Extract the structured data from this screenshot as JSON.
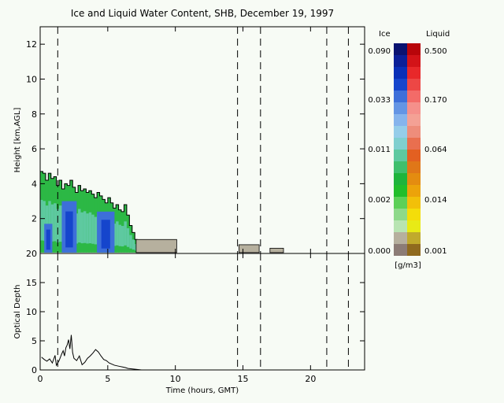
{
  "chart_data": [
    {
      "type": "heatmap",
      "title": "Ice and Liquid Water Content, SHB, December 19, 1997",
      "ylabel": "Height [km,AGL]",
      "xlim": [
        0,
        24
      ],
      "ylim": [
        0,
        13
      ],
      "yticks": [
        2,
        4,
        6,
        8,
        10,
        12
      ],
      "xticks": [
        0,
        5,
        10,
        15,
        20
      ],
      "dashed_lines_x": [
        1.3,
        14.6,
        16.3,
        21.2,
        22.8
      ],
      "cloud_top": {
        "x": [
          0.1,
          0.3,
          0.5,
          0.7,
          0.9,
          1.1,
          1.3,
          1.5,
          1.7,
          1.9,
          2.1,
          2.3,
          2.5,
          2.7,
          2.9,
          3.1,
          3.3,
          3.5,
          3.7,
          3.9,
          4.1,
          4.3,
          4.5,
          4.7,
          4.9,
          5.1,
          5.3,
          5.5,
          5.7,
          5.9,
          6.1,
          6.3,
          6.5,
          6.7,
          6.9,
          7.1
        ],
        "top_km": [
          4.7,
          4.6,
          4.2,
          4.6,
          4.3,
          4.4,
          3.9,
          4.2,
          3.7,
          4.0,
          3.9,
          4.2,
          3.8,
          3.5,
          3.9,
          3.6,
          3.7,
          3.5,
          3.6,
          3.4,
          3.2,
          3.5,
          3.3,
          3.1,
          2.9,
          3.2,
          2.9,
          2.6,
          2.8,
          2.5,
          2.4,
          2.8,
          2.2,
          1.6,
          1.2,
          0.8
        ]
      },
      "ice_cores": [
        {
          "x": [
            1.6,
            2.7
          ],
          "top_km": 3.0
        },
        {
          "x": [
            4.2,
            5.5
          ],
          "top_km": 2.4
        },
        {
          "x": [
            0.3,
            0.9
          ],
          "top_km": 1.7
        }
      ],
      "drizzle_blocks": [
        {
          "x": [
            7.1,
            10.1
          ],
          "top_km": 0.8
        },
        {
          "x": [
            14.7,
            16.2
          ],
          "top_km": 0.5
        },
        {
          "x": [
            17.0,
            18.0
          ],
          "top_km": 0.3
        }
      ],
      "colorbar": {
        "ice_label": "Ice",
        "liquid_label": "Liquid",
        "units": "[g/m3]",
        "ice_ticks": [
          "0.090",
          "0.033",
          "0.011",
          "0.002",
          "0.000"
        ],
        "liquid_ticks": [
          "0.500",
          "0.170",
          "0.064",
          "0.014",
          "0.001"
        ],
        "ice_colors": [
          "#0a1270",
          "#0b1f98",
          "#0a2fb7",
          "#1545cc",
          "#3d6fd9",
          "#6495e4",
          "#86b4ec",
          "#95cde9",
          "#7fcfcf",
          "#5ec9a0",
          "#3fbf6d",
          "#1fb43c",
          "#22be2b",
          "#5dd058",
          "#8ed98a",
          "#b8e4b2",
          "#b6b09e",
          "#8c7c76"
        ],
        "liquid_colors": [
          "#b8050a",
          "#d31318",
          "#e8282a",
          "#ed4745",
          "#f36b68",
          "#f5908b",
          "#f4a195",
          "#ee8d7b",
          "#e96f4f",
          "#e36021",
          "#e07718",
          "#e48c10",
          "#eca30a",
          "#f2c009",
          "#f4dd0a",
          "#e8ea16",
          "#c0aa2c",
          "#8f6a1e"
        ]
      }
    },
    {
      "type": "line",
      "xlabel": "Time (hours, GMT)",
      "ylabel": "Optical Depth",
      "xlim": [
        0,
        24
      ],
      "ylim": [
        0,
        20
      ],
      "yticks": [
        0,
        5,
        10,
        15,
        20
      ],
      "xticks": [
        0,
        5,
        10,
        15,
        20
      ],
      "dashed_lines_x": [
        1.3,
        14.6,
        16.3,
        21.2,
        22.8
      ],
      "series": [
        {
          "x": [
            0.1,
            0.3,
            0.5,
            0.7,
            0.9,
            1.1,
            1.2,
            1.4,
            1.6,
            1.7,
            1.8,
            1.9,
            2.0,
            2.1,
            2.2,
            2.3,
            2.4,
            2.5,
            2.7,
            2.9,
            3.1,
            3.3,
            3.5,
            3.7,
            3.9,
            4.1,
            4.3,
            4.5,
            4.7,
            4.9,
            5.1,
            5.3,
            5.5,
            5.7,
            5.9,
            6.1,
            6.3,
            6.5,
            6.7,
            6.9,
            7.1,
            7.3,
            7.5
          ],
          "values": [
            2.2,
            1.8,
            1.5,
            1.9,
            1.2,
            2.5,
            0.8,
            1.6,
            2.8,
            3.3,
            2.4,
            3.8,
            4.3,
            5.2,
            3.6,
            6.0,
            3.0,
            2.0,
            1.6,
            2.4,
            0.9,
            1.3,
            2.0,
            2.4,
            2.9,
            3.5,
            3.1,
            2.4,
            1.8,
            1.6,
            1.2,
            1.0,
            0.8,
            0.7,
            0.6,
            0.5,
            0.4,
            0.25,
            0.2,
            0.15,
            0.1,
            0.05,
            0.0
          ]
        }
      ]
    }
  ]
}
